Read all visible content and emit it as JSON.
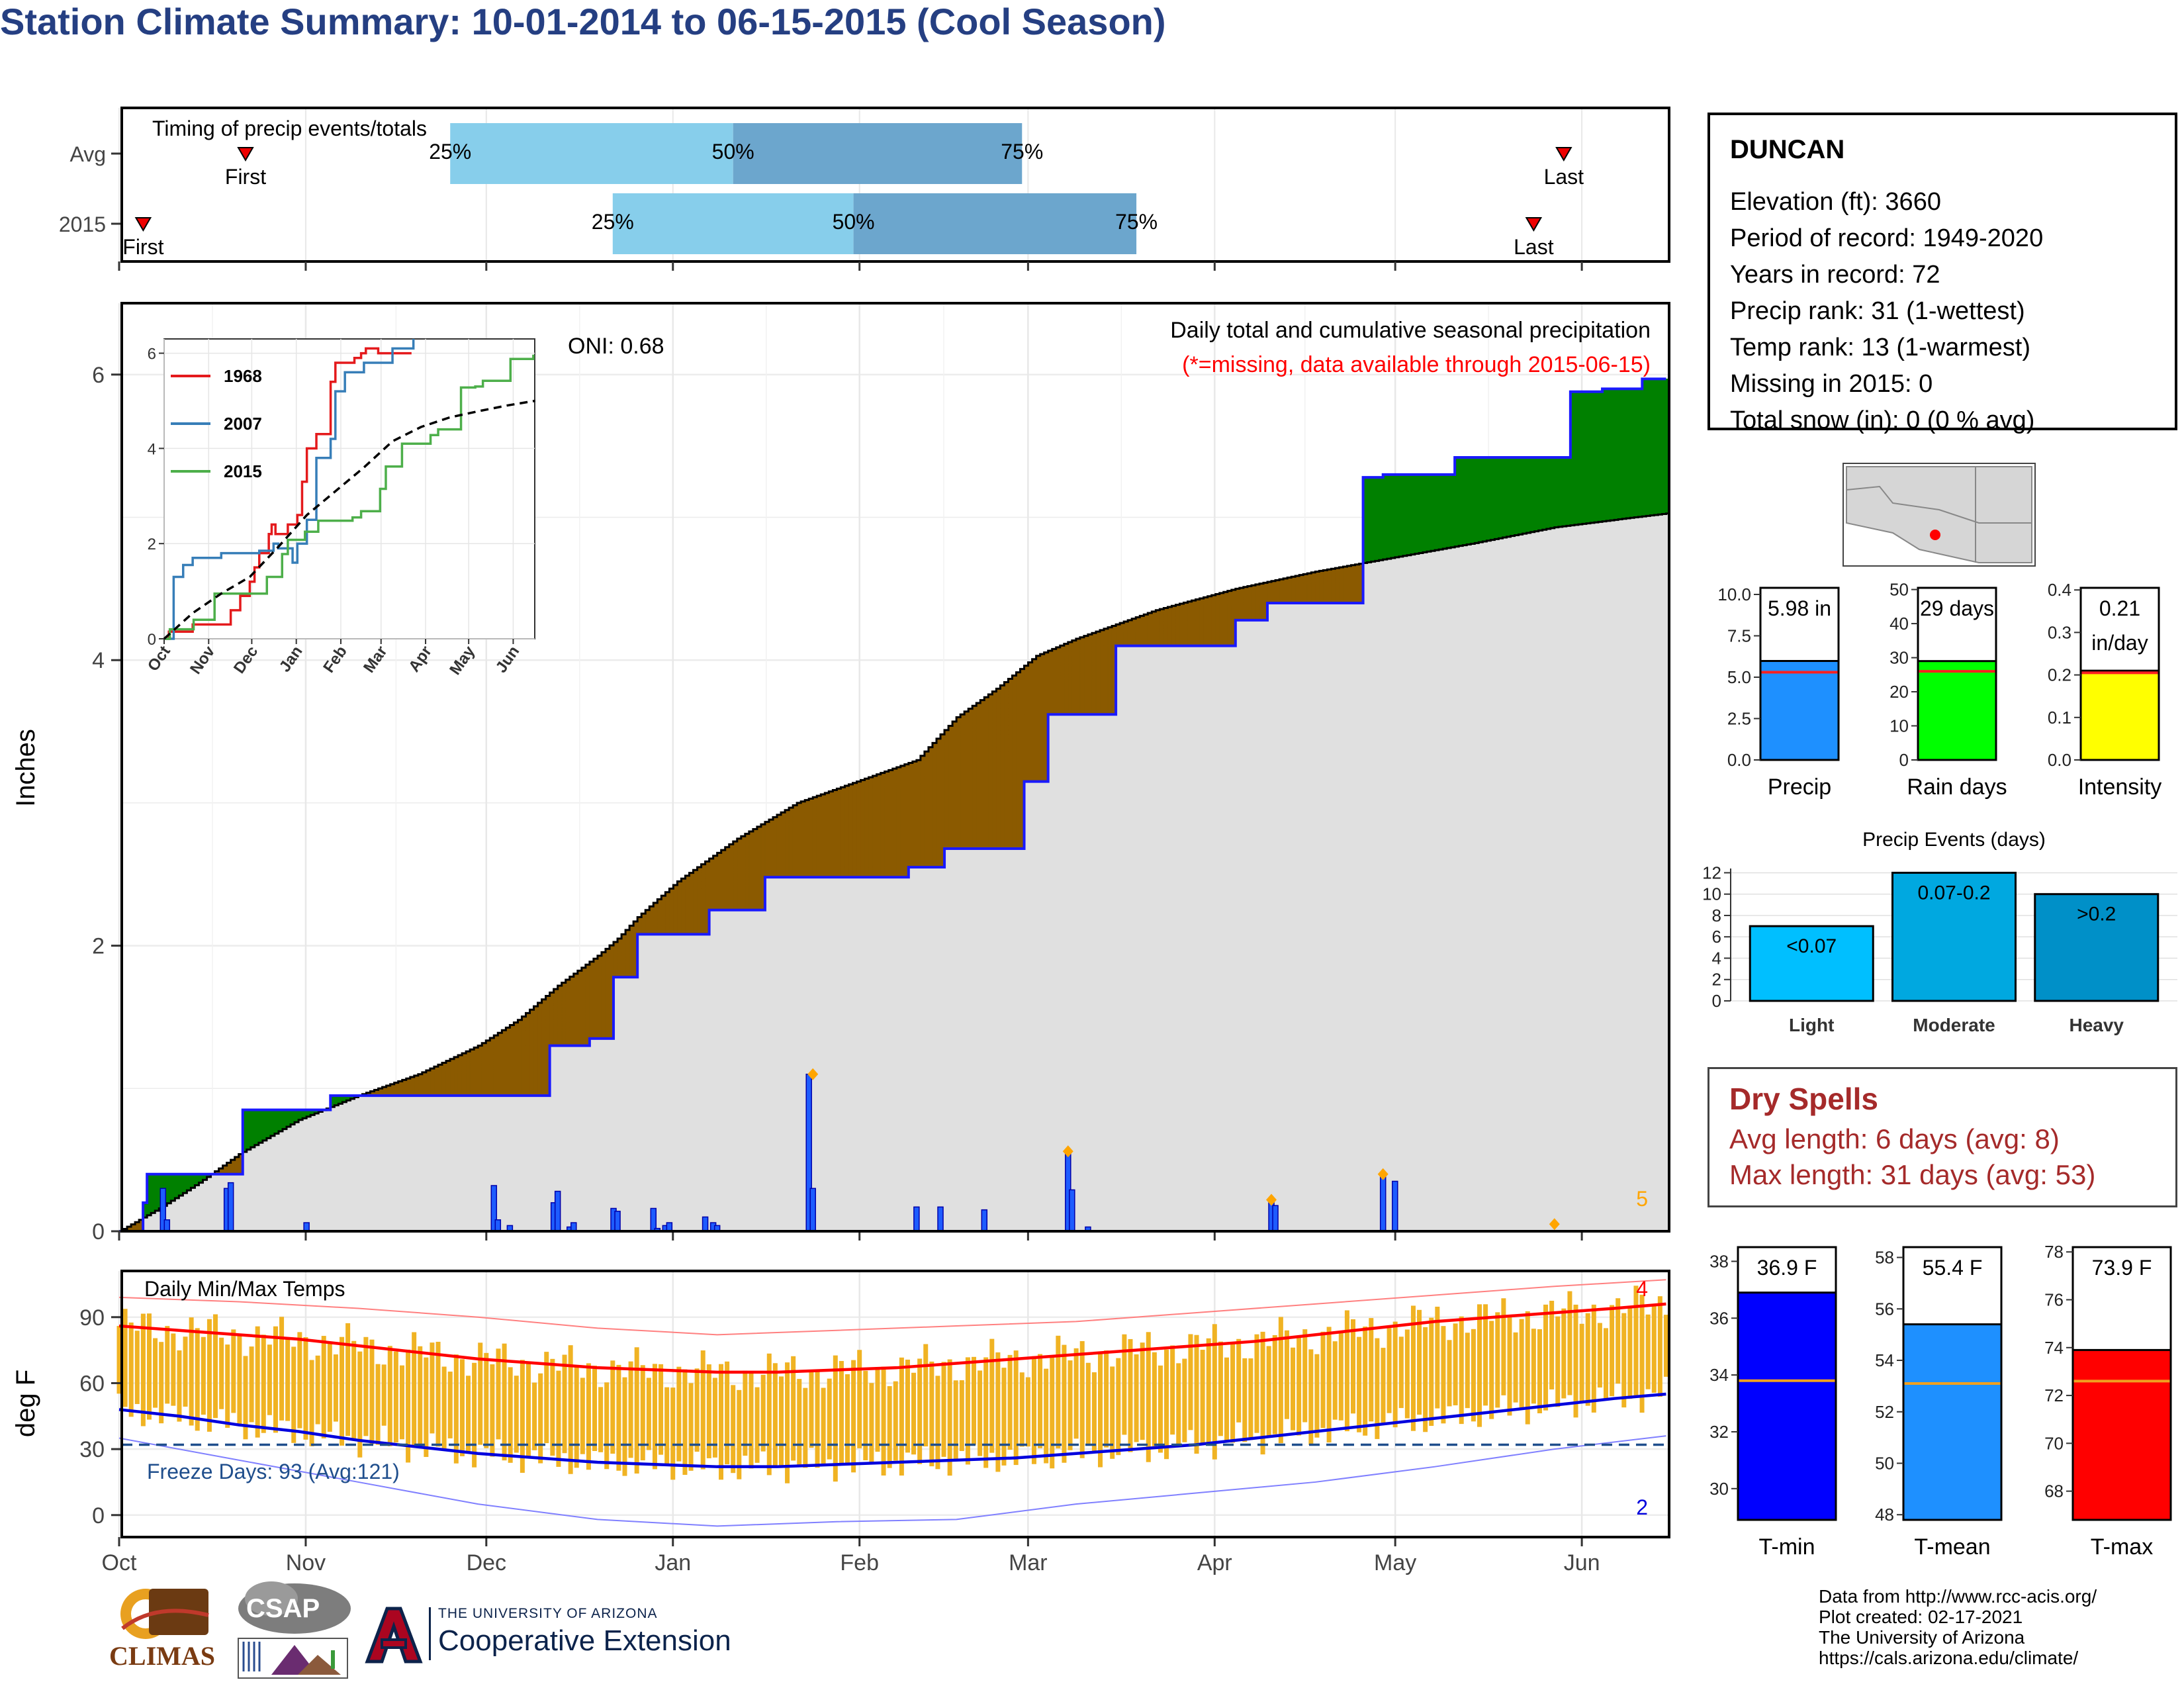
{
  "title": "Station Climate Summary: 10-01-2014 to 06-15-2015 (Cool Season)",
  "info": {
    "station": "DUNCAN",
    "elevation": "Elevation (ft): 3660",
    "period": "Period of record: 1949-2020",
    "years": "Years in record: 72",
    "precip_rank": "Precip rank: 31 (1-wettest)",
    "temp_rank": "Temp rank: 13 (1-warmest)",
    "missing": "Missing in 2015: 0",
    "snow": "Total snow (in): 0 (0 % avg)"
  },
  "dry_spells": {
    "title": "Dry Spells",
    "avg": "Avg length: 6 days (avg: 8)",
    "max": "Max length: 31 days (avg: 53)"
  },
  "credits": {
    "line1": "Data from http://www.rcc-acis.org/",
    "line2": "Plot created: 02-17-2021",
    "line3": "The University of Arizona",
    "line4": "https://cals.arizona.edu/climate/"
  },
  "logos": {
    "climas": "CLIMAS",
    "csap": "CSAP",
    "ua_small": "THE UNIVERSITY OF ARIZONA",
    "ua_big": "Cooperative Extension"
  },
  "colors": {
    "title": "#253f82",
    "above_avg": "#008000",
    "below_avg": "#8b5a00",
    "avg_fill": "#e0e0e0",
    "precip_bar": "#1e5cff",
    "temp_bar": "#f0b323",
    "tmax_line": "#ff0000",
    "tmin_line": "#0000dd",
    "dry": "#a52a2a"
  },
  "chart_data": [
    {
      "type": "bar",
      "id": "timing",
      "title": "Timing of precip events/totals",
      "rows": [
        {
          "label": "Avg",
          "first": "Oct 22",
          "p25": "Nov 25",
          "p50": "Jan 11",
          "p75": "Feb 28",
          "last": "May 29"
        },
        {
          "label": "2015",
          "first": "Oct 5",
          "p25": "Dec 22",
          "p50": "Jan 31",
          "p75": "Mar 19",
          "last": "May 24"
        }
      ],
      "marker_labels": {
        "first": "First",
        "last": "Last",
        "p25": "25%",
        "p50": "50%",
        "p75": "75%"
      },
      "x_ticks": [
        "Oct",
        "Nov",
        "Dec",
        "Jan",
        "Feb",
        "Mar",
        "Apr",
        "May",
        "Jun"
      ]
    },
    {
      "type": "area",
      "id": "cumulative",
      "title": "Daily total and cumulative seasonal precipitation",
      "subtitle": "(*=missing, data available through 2015-06-15)",
      "oni": "ONI: 0.68",
      "ylabel": "Inches",
      "ylim": [
        0,
        6.5
      ],
      "y_ticks": [
        "0",
        "2",
        "4",
        "6"
      ],
      "x_ticks": [
        "Oct",
        "Nov",
        "Dec",
        "Jan",
        "Feb",
        "Mar",
        "Apr",
        "May",
        "Jun"
      ],
      "series": [
        {
          "name": "2015 cumulative",
          "x": [
            0,
            6,
            7,
            17,
            27,
            31,
            50,
            53,
            60,
            69,
            75,
            81,
            96,
            108,
            118,
            121,
            124,
            128,
            130,
            148,
            162,
            198,
            207,
            227,
            233,
            250,
            257,
            263,
            274,
            280,
            288,
            312,
            317,
            327,
            335,
            350,
            364,
            372,
            382,
            388
          ],
          "y": [
            0,
            0.2,
            0.4,
            0.4,
            0.4,
            0.85,
            0.85,
            0.95,
            0.95,
            0.95,
            0.95,
            0.95,
            0.95,
            1.3,
            1.35,
            1.35,
            1.78,
            1.78,
            2.08,
            2.25,
            2.48,
            2.55,
            2.68,
            3.15,
            3.62,
            4.1,
            4.1,
            4.1,
            4.1,
            4.28,
            4.4,
            5.28,
            5.3,
            5.3,
            5.42,
            5.42,
            5.88,
            5.9,
            5.97,
            5.97
          ]
        },
        {
          "name": "average cumulative",
          "x": [
            0,
            10,
            20,
            30,
            45,
            60,
            75,
            90,
            100,
            110,
            120,
            125,
            130,
            140,
            155,
            170,
            185,
            200,
            210,
            220,
            230,
            240,
            260,
            280,
            300,
            320,
            340,
            360,
            380,
            410
          ],
          "y": [
            0,
            0.16,
            0.34,
            0.54,
            0.78,
            0.95,
            1.1,
            1.3,
            1.48,
            1.72,
            1.93,
            2.05,
            2.2,
            2.45,
            2.75,
            3.0,
            3.15,
            3.3,
            3.6,
            3.8,
            4.03,
            4.15,
            4.35,
            4.5,
            4.62,
            4.72,
            4.82,
            4.93,
            5.0,
            5.1
          ]
        }
      ],
      "daily": {
        "x": [
          11,
          12,
          27,
          28,
          47,
          94,
          95,
          98,
          109,
          110,
          113,
          114,
          124,
          125,
          134,
          135,
          137,
          138,
          147,
          149,
          150,
          173,
          174,
          200,
          206,
          217,
          238,
          239,
          243,
          289,
          290,
          317,
          320
        ],
        "y": [
          0.3,
          0.08,
          0.3,
          0.34,
          0.06,
          0.32,
          0.08,
          0.04,
          0.2,
          0.28,
          0.03,
          0.06,
          0.16,
          0.14,
          0.16,
          0.02,
          0.04,
          0.06,
          0.1,
          0.06,
          0.04,
          1.1,
          0.3,
          0.17,
          0.17,
          0.15,
          0.56,
          0.29,
          0.03,
          0.2,
          0.18,
          0.4,
          0.35
        ]
      },
      "daily_markers": {
        "x": [
          174,
          238,
          289,
          317,
          360
        ],
        "y": [
          1.1,
          0.56,
          0.22,
          0.4,
          0.05
        ]
      },
      "corner_label": "5"
    },
    {
      "type": "line",
      "id": "inset",
      "x_ticks": [
        "Oct",
        "Nov",
        "Dec",
        "Jan",
        "Feb",
        "Mar",
        "Apr",
        "May",
        "Jun"
      ],
      "y_ticks": [
        "0",
        "2",
        "4",
        "6"
      ],
      "ylim": [
        0,
        6.3
      ],
      "series": [
        {
          "name": "1968",
          "color": "#e41a1c",
          "x": [
            0,
            5,
            30,
            60,
            70,
            80,
            90,
            95,
            100,
            110,
            113,
            117,
            130,
            140,
            145,
            150,
            160,
            175,
            180,
            200,
            207,
            212,
            225,
            240,
            250,
            260
          ],
          "y": [
            0,
            0.15,
            0.3,
            0.3,
            0.6,
            0.9,
            1.2,
            1.5,
            1.8,
            2.2,
            2.4,
            2.2,
            2.4,
            2.6,
            3.3,
            4.0,
            4.3,
            5.4,
            5.8,
            5.9,
            6.0,
            6.1,
            6.0,
            6.0,
            6.0,
            6.0
          ]
        },
        {
          "name": "2007",
          "color": "#377eb8",
          "x": [
            0,
            10,
            20,
            30,
            60,
            100,
            115,
            120,
            135,
            140,
            150,
            160,
            175,
            180,
            190,
            210,
            240,
            260,
            262
          ],
          "y": [
            0,
            1.3,
            1.55,
            1.7,
            1.8,
            1.85,
            2.0,
            1.9,
            1.6,
            2.0,
            2.5,
            3.8,
            4.2,
            5.2,
            5.6,
            5.8,
            6.1,
            6.1,
            6.3
          ]
        },
        {
          "name": "2015",
          "color": "#4daf4a",
          "x": [
            0,
            6,
            31,
            53,
            75,
            108,
            124,
            130,
            148,
            162,
            198,
            207,
            227,
            233,
            250,
            263,
            280,
            288,
            312,
            327,
            335,
            364,
            388
          ],
          "y": [
            0,
            0.2,
            0.4,
            0.95,
            0.95,
            1.3,
            1.78,
            2.08,
            2.25,
            2.48,
            2.55,
            2.68,
            3.15,
            3.62,
            4.1,
            4.1,
            4.28,
            4.4,
            5.28,
            5.3,
            5.42,
            5.88,
            5.97
          ]
        },
        {
          "name": "avg",
          "color": "#000000",
          "dashed": true,
          "x": [
            0,
            30,
            60,
            90,
            120,
            150,
            180,
            210,
            240,
            270,
            300,
            330,
            360,
            390
          ],
          "y": [
            0,
            0.54,
            0.95,
            1.3,
            1.93,
            2.6,
            3.1,
            3.6,
            4.15,
            4.45,
            4.65,
            4.78,
            4.9,
            5.0
          ]
        }
      ]
    },
    {
      "type": "bar",
      "id": "temps",
      "title": "Daily Min/Max Temps",
      "ylabel": "deg F",
      "ylim": [
        -10,
        111
      ],
      "y_ticks": [
        "0",
        "30",
        "60",
        "90"
      ],
      "x_ticks": [
        "Oct",
        "Nov",
        "Dec",
        "Jan",
        "Feb",
        "Mar",
        "Apr",
        "May",
        "Jun"
      ],
      "freeze_label": "Freeze Days: 93 (Avg:121)",
      "freeze_line": 32,
      "corner_top": "4",
      "corner_bottom": "2",
      "tmax_avg": {
        "x": [
          0,
          15,
          30,
          45,
          60,
          75,
          90,
          105,
          120,
          135,
          150,
          165,
          180,
          195,
          210,
          225,
          240,
          255,
          270,
          285,
          300,
          315,
          330,
          345,
          360,
          375,
          388
        ],
        "y": [
          86,
          84,
          82,
          80,
          77,
          74,
          71,
          69,
          67,
          66,
          65,
          65,
          66,
          67,
          69,
          71,
          73,
          75,
          77,
          79,
          82,
          85,
          88,
          90,
          92,
          94,
          96
        ]
      },
      "tmin_avg": {
        "x": [
          0,
          15,
          30,
          45,
          60,
          75,
          90,
          105,
          120,
          135,
          150,
          165,
          180,
          195,
          210,
          225,
          240,
          255,
          270,
          285,
          300,
          315,
          330,
          345,
          360,
          375,
          388
        ],
        "y": [
          48,
          45,
          41,
          38,
          34,
          31,
          28,
          26,
          24,
          23,
          22,
          22,
          23,
          24,
          25,
          26,
          28,
          30,
          32,
          35,
          38,
          41,
          44,
          47,
          50,
          53,
          55
        ]
      },
      "record_max": {
        "x": [
          0,
          30,
          60,
          90,
          120,
          150,
          180,
          210,
          240,
          270,
          300,
          330,
          360,
          388
        ],
        "y": [
          99,
          97,
          94,
          90,
          85,
          82,
          84,
          86,
          88,
          92,
          96,
          100,
          104,
          107
        ]
      },
      "record_min": {
        "x": [
          0,
          30,
          60,
          90,
          120,
          150,
          180,
          210,
          240,
          270,
          300,
          330,
          360,
          388
        ],
        "y": [
          35,
          25,
          15,
          5,
          -2,
          -5,
          -3,
          -2,
          5,
          10,
          15,
          22,
          30,
          36
        ]
      }
    },
    {
      "type": "bar",
      "id": "mini-precip",
      "categories": [
        "Precip"
      ],
      "values": [
        5.98
      ],
      "avg": 5.3,
      "label": "5.98 in",
      "ylim": [
        0,
        10.4
      ],
      "y_ticks": [
        "0.0",
        "2.5",
        "5.0",
        "7.5",
        "10.0"
      ],
      "color": "#1e90ff"
    },
    {
      "type": "bar",
      "id": "mini-raindays",
      "categories": [
        "Rain days"
      ],
      "values": [
        29
      ],
      "avg": 26,
      "label": "29 days",
      "ylim": [
        0,
        50.5
      ],
      "y_ticks": [
        "0",
        "10",
        "20",
        "30",
        "40",
        "50"
      ],
      "color": "#00ff00"
    },
    {
      "type": "bar",
      "id": "mini-intensity",
      "categories": [
        "Intensity"
      ],
      "values": [
        0.21
      ],
      "avg": 0.205,
      "label": "0.21",
      "label2": "in/day",
      "ylim": [
        0,
        0.405
      ],
      "y_ticks": [
        "0.0",
        "0.1",
        "0.2",
        "0.3",
        "0.4"
      ],
      "color": "#ffff00"
    },
    {
      "type": "bar",
      "id": "events",
      "title": "Precip Events (days)",
      "categories": [
        "Light",
        "Moderate",
        "Heavy"
      ],
      "labels": [
        "<0.07",
        "0.07-0.2",
        ">0.2"
      ],
      "values": [
        7,
        12,
        10
      ],
      "ylim": [
        0,
        12.4
      ],
      "y_ticks": [
        "0",
        "2",
        "4",
        "6",
        "8",
        "10",
        "12"
      ],
      "colors": [
        "#00bfff",
        "#00a8e0",
        "#0090c8"
      ]
    },
    {
      "type": "bar",
      "id": "mini-tmin",
      "categories": [
        "T-min"
      ],
      "values": [
        36.9
      ],
      "avg": 33.8,
      "label": "36.9 F",
      "ylim": [
        28.9,
        38.5
      ],
      "y_ticks": [
        "30",
        "32",
        "34",
        "36",
        "38"
      ],
      "color": "#0000ff"
    },
    {
      "type": "bar",
      "id": "mini-tmean",
      "categories": [
        "T-mean"
      ],
      "values": [
        55.4
      ],
      "avg": 53.1,
      "label": "55.4 F",
      "ylim": [
        47.8,
        58.4
      ],
      "y_ticks": [
        "48",
        "50",
        "52",
        "54",
        "56",
        "58"
      ],
      "color": "#1e90ff"
    },
    {
      "type": "bar",
      "id": "mini-tmax",
      "categories": [
        "T-max"
      ],
      "values": [
        73.9
      ],
      "avg": 72.6,
      "label": "73.9 F",
      "ylim": [
        66.8,
        78.2
      ],
      "y_ticks": [
        "68",
        "70",
        "72",
        "74",
        "76",
        "78"
      ],
      "color": "#ff0000"
    }
  ]
}
